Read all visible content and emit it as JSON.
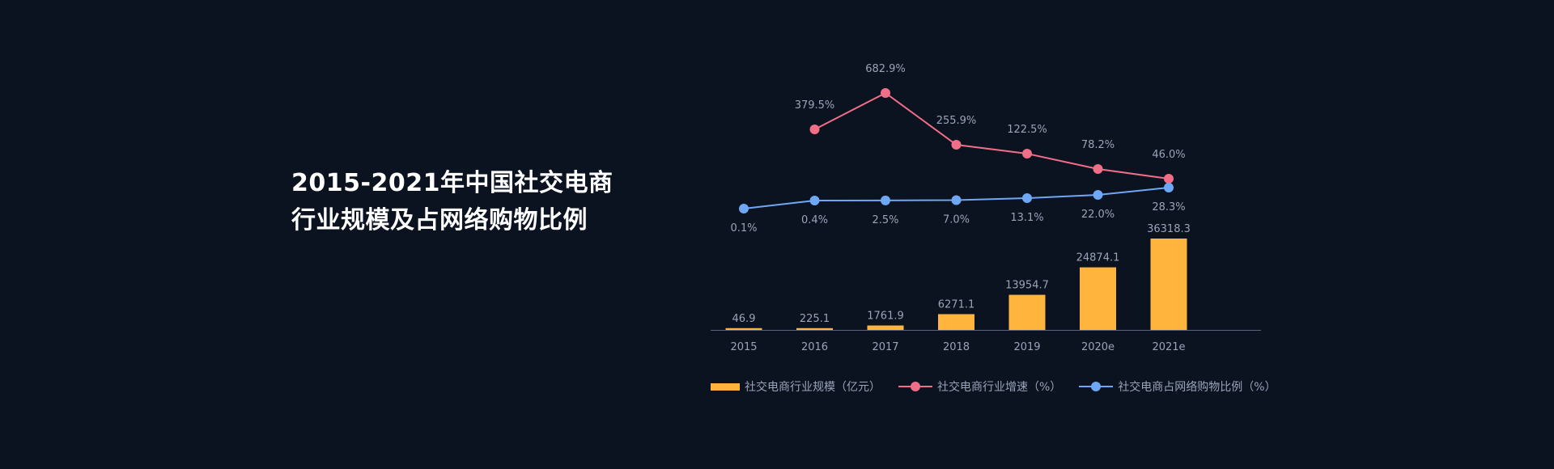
{
  "title": {
    "line1": "2015-2021年中国社交电商",
    "line2": "行业规模及占网络购物比例"
  },
  "colors": {
    "bar": "#ffb53d",
    "growth": "#f06e87",
    "ratio": "#6ea8f5",
    "label": "#9aa4b8",
    "axis": "#5a6478"
  },
  "legend": {
    "bar_label": "社交电商行业规模（亿元）",
    "growth_label": "社交电商行业增速（%）",
    "ratio_label": "社交电商占网络购物比例（%）"
  },
  "chart_data": {
    "type": "bar",
    "categories": [
      "2015",
      "2016",
      "2017",
      "2018",
      "2019",
      "2020e",
      "2021e"
    ],
    "series": [
      {
        "name": "社交电商行业规模（亿元）",
        "type": "bar",
        "values": [
          46.9,
          225.1,
          1761.9,
          6271.1,
          13954.7,
          24874.1,
          36318.3
        ],
        "labels": [
          "46.9",
          "225.1",
          "1761.9",
          "6271.1",
          "13954.7",
          "24874.1",
          "36318.3"
        ]
      },
      {
        "name": "社交电商行业增速（%）",
        "type": "line",
        "values": [
          null,
          379.5,
          682.9,
          255.9,
          122.5,
          78.2,
          46.0
        ],
        "labels": [
          null,
          "379.5%",
          "682.9%",
          "255.9%",
          "122.5%",
          "78.2%",
          "46.0%"
        ]
      },
      {
        "name": "社交电商占网络购物比例（%）",
        "type": "line",
        "values": [
          0.1,
          0.4,
          2.5,
          7.0,
          13.1,
          22.0,
          28.3
        ],
        "labels": [
          "0.1%",
          "0.4%",
          "2.5%",
          "7.0%",
          "13.1%",
          "22.0%",
          "28.3%"
        ]
      }
    ],
    "grid": false,
    "legend_position": "bottom"
  }
}
